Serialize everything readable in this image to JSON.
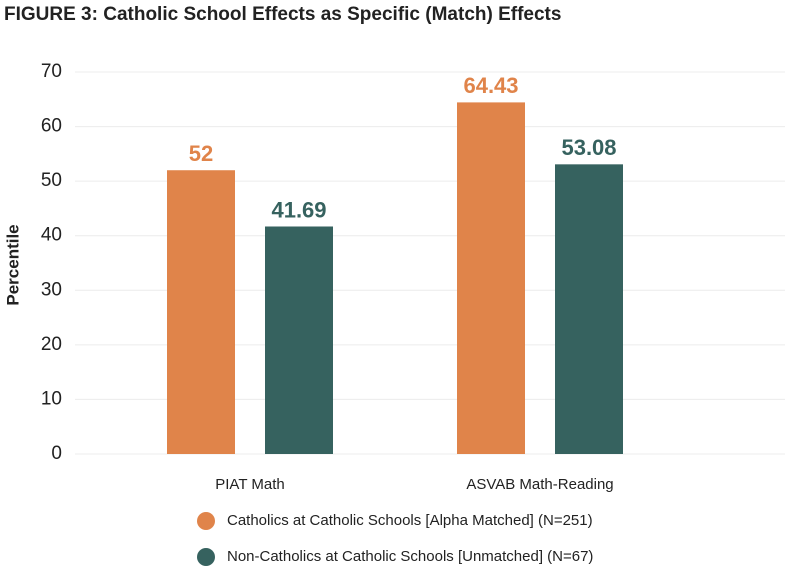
{
  "chart_data": {
    "type": "bar",
    "title": "FIGURE 3: Catholic School Effects as Specific (Match) Effects",
    "y_label": "Percentile",
    "categories": [
      "PIAT Math",
      "ASVAB Math-Reading"
    ],
    "series": [
      {
        "name": "Catholics at Catholic Schools [Alpha Matched] (N=251)",
        "color": "#e0844a",
        "values": [
          52,
          64.43
        ]
      },
      {
        "name": "Non-Catholics at Catholic Schools [Unmatched] (N=67)",
        "color": "#36625f",
        "values": [
          41.69,
          53.08
        ]
      }
    ],
    "ylim": [
      0,
      70
    ],
    "yticks": [
      0,
      10,
      20,
      30,
      40,
      50,
      60,
      70
    ],
    "grid": true
  }
}
